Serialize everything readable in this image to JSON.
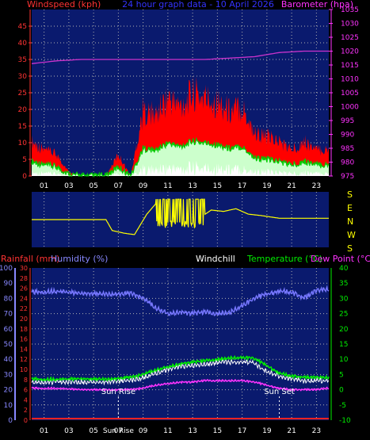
{
  "header": {
    "title": "24 hour graph data - 10 April 2026",
    "left_label": "Windspeed (kph)",
    "right_label": "Barometer (hpa)"
  },
  "direction_panel": {
    "labels": [
      "S",
      "E",
      "N",
      "W",
      "S"
    ]
  },
  "bottom_header": {
    "rainfall_label": "Rainfall (mm)",
    "humidity_label": "Humidity (%)",
    "windchill_label": "Windchill",
    "temperature_label": "Temperature (°C)",
    "dewpoint_label": "Dew Point (°C)"
  },
  "annotations": {
    "sunrise": "Sun Rise",
    "sunset": "Sun Set",
    "sunrise_axis": "Sun Rise"
  },
  "colors": {
    "panel_bg": "#0a1a6e",
    "grid": "#b0b0b0",
    "wind": "#ff0000",
    "gust_fill": "#ccffcc",
    "avg_wind": "#00cc00",
    "barometer": "#cc33cc",
    "direction": "#ffff00",
    "humidity": "#7777ff",
    "temperature": "#00ee00",
    "windchill": "#ffffff",
    "dewpoint": "#ff33ff",
    "rainfall": "#ff2222",
    "left_axis_top": "#ff3333",
    "right_axis_top": "#ff33ff",
    "left_axis_bottom_rain": "#ff3333",
    "left_axis_bottom_hum": "#8888ff",
    "right_axis_bottom": "#00ee00",
    "hour_labels": "#ffffff"
  },
  "chart_data": [
    {
      "type": "line",
      "x_ticks": [
        "01",
        "03",
        "05",
        "07",
        "09",
        "11",
        "13",
        "15",
        "17",
        "19",
        "21",
        "23"
      ],
      "yleft_ticks": [
        "0",
        "5",
        "10",
        "15",
        "20",
        "25",
        "30",
        "35",
        "40",
        "45"
      ],
      "yright_ticks": [
        "975",
        "980",
        "985",
        "990",
        "995",
        "1000",
        "1005",
        "1010",
        "1015",
        "1020",
        "1025",
        "1030",
        "1035"
      ],
      "ylim_left": [
        0,
        50
      ],
      "ylim_right": [
        975,
        1035
      ],
      "series": [
        {
          "name": "Windspeed",
          "x": [
            0,
            1,
            2,
            3,
            4,
            5,
            6,
            7,
            8,
            9,
            10,
            11,
            12,
            13,
            14,
            15,
            16,
            17,
            18,
            19,
            20,
            21,
            22,
            23
          ],
          "values": [
            8,
            6,
            5,
            1,
            0,
            0,
            0,
            5,
            0,
            15,
            14,
            18,
            16,
            19,
            18,
            17,
            15,
            16,
            10,
            9,
            8,
            6,
            8,
            6
          ]
        },
        {
          "name": "Barometer",
          "x": [
            0,
            2,
            4,
            6,
            8,
            10,
            12,
            14,
            16,
            18,
            20,
            22,
            23.5
          ],
          "values": [
            1015.5,
            1016.5,
            1017,
            1017,
            1017,
            1017,
            1017,
            1017,
            1017.5,
            1018,
            1019.5,
            1020,
            1020
          ]
        }
      ]
    },
    {
      "type": "line",
      "x_ticks": [
        "01",
        "03",
        "05",
        "07",
        "09",
        "11",
        "13",
        "15",
        "17",
        "19",
        "21",
        "23"
      ],
      "series": [
        {
          "name": "Wind Direction",
          "x": [
            0,
            3,
            6,
            6.5,
            7.5,
            8.3,
            9.3,
            10.2,
            11.5,
            12.7,
            13.7,
            14.5,
            15.5,
            16.5,
            17.5,
            18.5,
            20,
            22,
            23.5
          ],
          "values": [
            180,
            180,
            180,
            100,
            80,
            70,
            220,
            315,
            45,
            120,
            200,
            250,
            240,
            260,
            220,
            210,
            190,
            190,
            190
          ]
        }
      ]
    },
    {
      "type": "line",
      "x_ticks": [
        "01",
        "03",
        "05",
        "07",
        "09",
        "11",
        "13",
        "15",
        "17",
        "19",
        "21",
        "23"
      ],
      "yleft_rain_ticks": [
        "0",
        "2",
        "4",
        "6",
        "8",
        "10",
        "12",
        "14",
        "16",
        "18",
        "20",
        "22",
        "24",
        "26",
        "28",
        "30"
      ],
      "yleft_hum_ticks": [
        "0",
        "10",
        "20",
        "30",
        "40",
        "50",
        "60",
        "70",
        "80",
        "90",
        "100"
      ],
      "yright_ticks": [
        "-10",
        "-5",
        "0",
        "5",
        "10",
        "15",
        "20",
        "25",
        "30",
        "35",
        "40"
      ],
      "ylim_hum": [
        0,
        100
      ],
      "ylim_temp": [
        -10,
        40
      ],
      "series": [
        {
          "name": "Humidity (%)",
          "x": [
            0,
            2,
            4,
            6,
            8,
            9,
            10,
            11,
            12,
            13,
            14,
            15,
            16,
            17,
            18,
            19,
            20,
            21,
            22,
            23,
            23.8
          ],
          "values": [
            84,
            85,
            83,
            83,
            83,
            80,
            74,
            70,
            71,
            70,
            71,
            70,
            71,
            75,
            80,
            83,
            85,
            84,
            80,
            85,
            86
          ]
        },
        {
          "name": "Temperature (°C)",
          "x": [
            0,
            2,
            4,
            6,
            8,
            9,
            10,
            11,
            12,
            13,
            14,
            15,
            16,
            17,
            17.8,
            19,
            20,
            21,
            22,
            23,
            23.8
          ],
          "values": [
            3.5,
            3.5,
            3.5,
            3.5,
            4,
            5,
            6.5,
            7.5,
            8.5,
            9,
            9.5,
            10,
            10.5,
            10.5,
            10.5,
            8,
            5.5,
            4.5,
            4,
            4,
            4
          ]
        },
        {
          "name": "Windchill",
          "x": [
            0,
            2,
            4,
            6,
            8,
            9,
            10,
            11,
            12,
            13,
            14,
            15,
            16,
            17,
            17.8,
            19,
            20,
            21,
            22,
            23,
            23.8
          ],
          "values": [
            2.5,
            2.5,
            2.5,
            2.5,
            3,
            4,
            5.5,
            6.5,
            7.5,
            8,
            8.5,
            9,
            9,
            9,
            9,
            6,
            4.5,
            3.5,
            3,
            3,
            3
          ]
        },
        {
          "name": "Dew Point (°C)",
          "x": [
            0,
            2,
            4,
            6,
            8,
            9,
            10,
            11,
            12,
            13,
            14,
            15,
            16,
            17,
            18,
            19,
            20,
            21,
            22,
            23,
            23.8
          ],
          "values": [
            0.5,
            0.5,
            0,
            0,
            0,
            0.5,
            1.5,
            2,
            2.5,
            2.5,
            3,
            3,
            3,
            3,
            2.5,
            1.5,
            0.5,
            0,
            0,
            0,
            0.5
          ]
        },
        {
          "name": "Rainfall (mm)",
          "x": [
            0,
            24
          ],
          "values": [
            0,
            0
          ]
        }
      ],
      "sunrise_hour": 7.0,
      "sunset_hour": 20.0
    }
  ]
}
